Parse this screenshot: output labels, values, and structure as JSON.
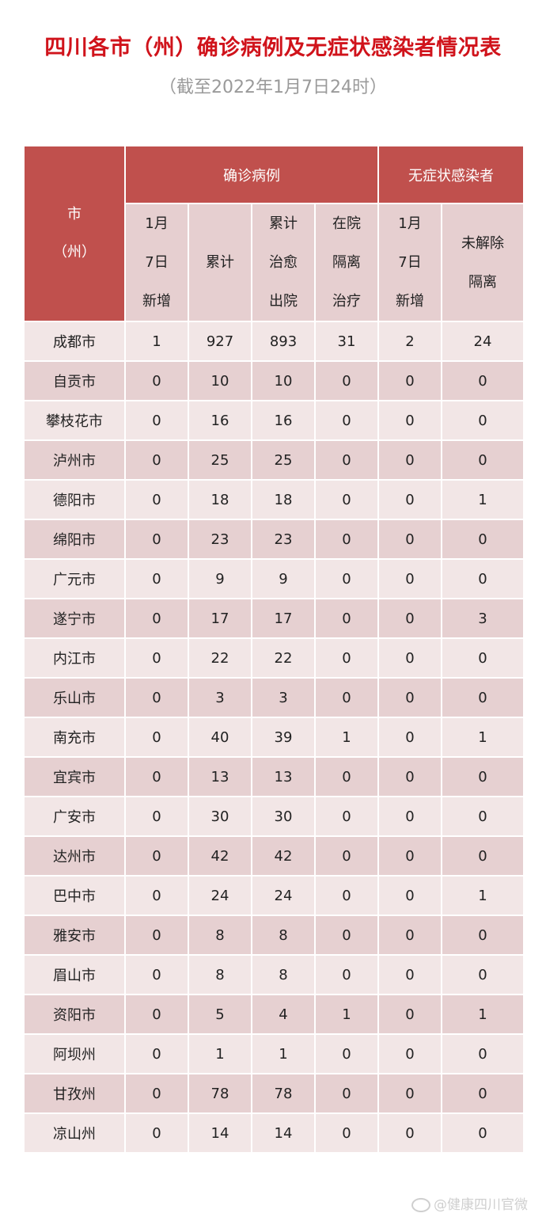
{
  "title": "四川各市（州）确诊病例及无症状感染者情况表",
  "subtitle": "（截至2022年1月7日24时）",
  "header": {
    "city": "市\n（州）",
    "confirmed_group": "确诊病例",
    "asymptomatic_group": "无症状感染者",
    "columns": [
      "1月\n7日\n新增",
      "累计",
      "累计\n治愈\n出院",
      "在院\n隔离\n治疗",
      "1月\n7日\n新增",
      "未解除\n隔离"
    ]
  },
  "rows": [
    [
      "成都市",
      "1",
      "927",
      "893",
      "31",
      "2",
      "24"
    ],
    [
      "自贡市",
      "0",
      "10",
      "10",
      "0",
      "0",
      "0"
    ],
    [
      "攀枝花市",
      "0",
      "16",
      "16",
      "0",
      "0",
      "0"
    ],
    [
      "泸州市",
      "0",
      "25",
      "25",
      "0",
      "0",
      "0"
    ],
    [
      "德阳市",
      "0",
      "18",
      "18",
      "0",
      "0",
      "1"
    ],
    [
      "绵阳市",
      "0",
      "23",
      "23",
      "0",
      "0",
      "0"
    ],
    [
      "广元市",
      "0",
      "9",
      "9",
      "0",
      "0",
      "0"
    ],
    [
      "遂宁市",
      "0",
      "17",
      "17",
      "0",
      "0",
      "3"
    ],
    [
      "内江市",
      "0",
      "22",
      "22",
      "0",
      "0",
      "0"
    ],
    [
      "乐山市",
      "0",
      "3",
      "3",
      "0",
      "0",
      "0"
    ],
    [
      "南充市",
      "0",
      "40",
      "39",
      "1",
      "0",
      "1"
    ],
    [
      "宜宾市",
      "0",
      "13",
      "13",
      "0",
      "0",
      "0"
    ],
    [
      "广安市",
      "0",
      "30",
      "30",
      "0",
      "0",
      "0"
    ],
    [
      "达州市",
      "0",
      "42",
      "42",
      "0",
      "0",
      "0"
    ],
    [
      "巴中市",
      "0",
      "24",
      "24",
      "0",
      "0",
      "1"
    ],
    [
      "雅安市",
      "0",
      "8",
      "8",
      "0",
      "0",
      "0"
    ],
    [
      "眉山市",
      "0",
      "8",
      "8",
      "0",
      "0",
      "0"
    ],
    [
      "资阳市",
      "0",
      "5",
      "4",
      "1",
      "0",
      "1"
    ],
    [
      "阿坝州",
      "0",
      "1",
      "1",
      "0",
      "0",
      "0"
    ],
    [
      "甘孜州",
      "0",
      "78",
      "78",
      "0",
      "0",
      "0"
    ],
    [
      "凉山州",
      "0",
      "14",
      "14",
      "0",
      "0",
      "0"
    ]
  ],
  "watermark": "@健康四川官微",
  "colors": {
    "title": "#d0131b",
    "header": "#c0504d",
    "row_light": "#f2e6e6",
    "row_dark": "#e6d0d1"
  }
}
